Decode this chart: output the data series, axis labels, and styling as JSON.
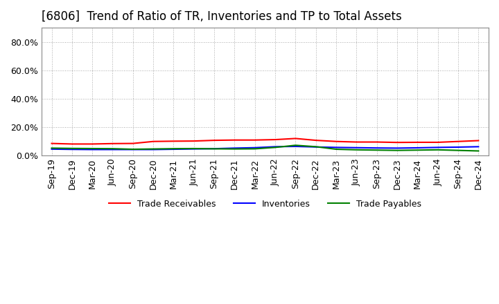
{
  "title": "[6806]  Trend of Ratio of TR, Inventories and TP to Total Assets",
  "ylim": [
    0.0,
    0.9
  ],
  "yticks": [
    0.0,
    0.2,
    0.4,
    0.6,
    0.8
  ],
  "ytick_labels": [
    "0.0%",
    "20.0%",
    "40.0%",
    "60.0%",
    "80.0%"
  ],
  "x_labels": [
    "Sep-19",
    "Dec-19",
    "Mar-20",
    "Jun-20",
    "Sep-20",
    "Dec-20",
    "Mar-21",
    "Jun-21",
    "Sep-21",
    "Dec-21",
    "Mar-22",
    "Jun-22",
    "Sep-22",
    "Dec-22",
    "Mar-23",
    "Jun-23",
    "Sep-23",
    "Dec-23",
    "Mar-24",
    "Jun-24",
    "Sep-24",
    "Dec-24"
  ],
  "trade_receivables": [
    0.083,
    0.079,
    0.079,
    0.082,
    0.083,
    0.097,
    0.099,
    0.1,
    0.105,
    0.107,
    0.107,
    0.11,
    0.118,
    0.105,
    0.097,
    0.093,
    0.093,
    0.09,
    0.091,
    0.091,
    0.097,
    0.103
  ],
  "inventories": [
    0.043,
    0.041,
    0.04,
    0.04,
    0.04,
    0.04,
    0.042,
    0.044,
    0.046,
    0.05,
    0.053,
    0.06,
    0.062,
    0.058,
    0.055,
    0.053,
    0.051,
    0.05,
    0.052,
    0.055,
    0.057,
    0.06
  ],
  "trade_payables": [
    0.05,
    0.048,
    0.047,
    0.046,
    0.042,
    0.044,
    0.046,
    0.047,
    0.045,
    0.044,
    0.045,
    0.055,
    0.07,
    0.06,
    0.042,
    0.038,
    0.036,
    0.034,
    0.036,
    0.038,
    0.034,
    0.03
  ],
  "tr_color": "#FF0000",
  "inv_color": "#0000FF",
  "tp_color": "#008000",
  "background_color": "#FFFFFF",
  "grid_color": "#AAAAAA",
  "title_fontsize": 12,
  "legend_labels": [
    "Trade Receivables",
    "Inventories",
    "Trade Payables"
  ]
}
